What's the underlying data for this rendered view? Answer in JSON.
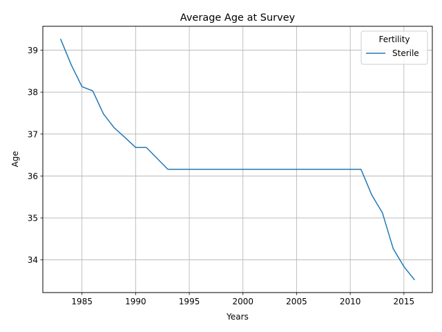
{
  "chart_data": {
    "type": "line",
    "title": "Average Age at Survey",
    "xlabel": "Years",
    "ylabel": "Age",
    "xlim": [
      1981.35,
      2017.65
    ],
    "ylim": [
      33.22,
      39.57
    ],
    "xticks": [
      1985,
      1990,
      1995,
      2000,
      2005,
      2010,
      2015
    ],
    "yticks": [
      34,
      35,
      36,
      37,
      38,
      39
    ],
    "grid": true,
    "legend": {
      "title": "Fertility",
      "placement": "top-right"
    },
    "series": [
      {
        "name": "Sterile",
        "color": "#1f77b4",
        "x": [
          1983,
          1984,
          1985,
          1986,
          1987,
          1988,
          1989,
          1990,
          1991,
          1992,
          1993,
          1994,
          1995,
          1996,
          1997,
          1998,
          1999,
          2000,
          2001,
          2002,
          2003,
          2004,
          2005,
          2006,
          2007,
          2008,
          2009,
          2010,
          2011,
          2012,
          2013,
          2014,
          2015,
          2016
        ],
        "y": [
          39.27,
          38.65,
          38.13,
          38.03,
          37.48,
          37.15,
          36.92,
          36.68,
          36.68,
          36.42,
          36.16,
          36.16,
          36.16,
          36.16,
          36.16,
          36.16,
          36.16,
          36.16,
          36.16,
          36.16,
          36.16,
          36.16,
          36.16,
          36.16,
          36.16,
          36.16,
          36.16,
          36.16,
          36.16,
          35.55,
          35.12,
          34.27,
          33.84,
          33.52
        ]
      }
    ]
  }
}
